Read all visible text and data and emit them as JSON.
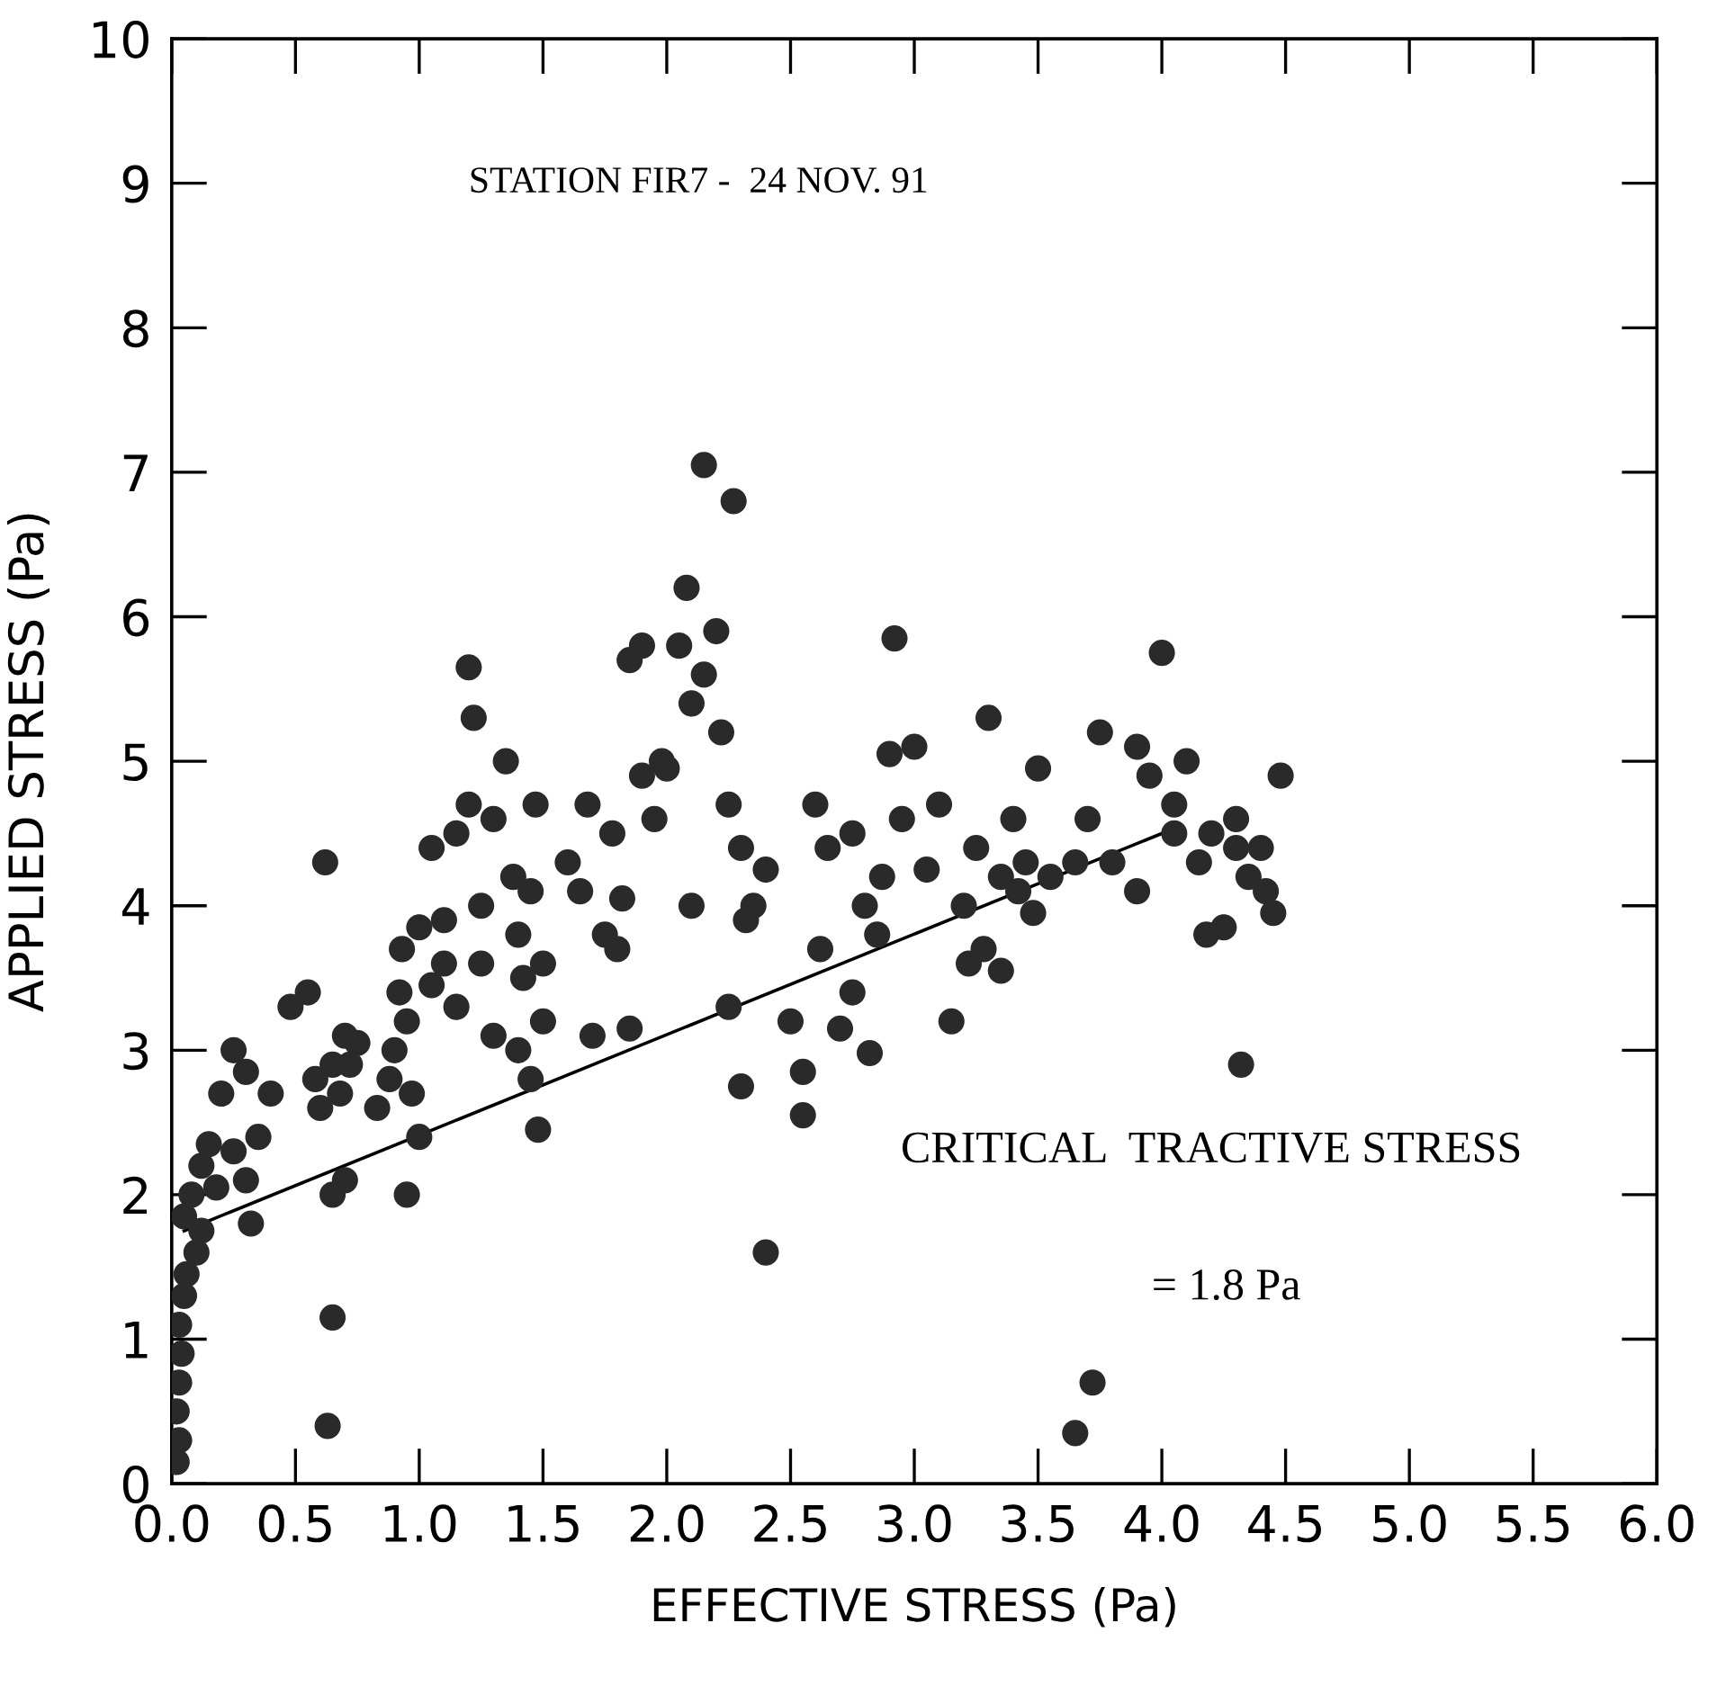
{
  "chart_data": {
    "type": "scatter",
    "xlabel": "EFFECTIVE STRESS (Pa)",
    "ylabel": "APPLIED STRESS (Pa)",
    "annotations": [
      "STATION FIR7 -  24 NOV. 91",
      "CRITICAL  TRACTIVE STRESS",
      "= 1.8 Pa"
    ],
    "xlim": [
      0,
      6
    ],
    "ylim": [
      0,
      10
    ],
    "xticks": [
      {
        "value": 0,
        "label": "0.0"
      },
      0.5,
      {
        "value": 1,
        "label": "1.0"
      },
      1.5,
      {
        "value": 2,
        "label": "2.0"
      },
      2.5,
      {
        "value": 3,
        "label": "3.0"
      },
      3.5,
      {
        "value": 4,
        "label": "4.0"
      },
      4.5,
      {
        "value": 5,
        "label": "5.0"
      },
      5.5,
      {
        "value": 6,
        "label": "6.0"
      }
    ],
    "yticks": [
      0,
      1,
      2,
      3,
      4,
      5,
      6,
      7,
      8,
      9,
      10
    ],
    "grid": false,
    "legend": false,
    "marker": "circle",
    "series": [
      {
        "color": "#2a2a2a",
        "x": [
          0.02,
          0.03,
          0.02,
          0.03,
          0.04,
          0.03,
          0.05,
          0.06,
          0.1,
          0.12,
          0.05,
          0.08,
          0.12,
          0.15,
          0.2,
          0.25,
          0.3,
          0.4,
          0.35,
          0.3,
          0.25,
          0.32,
          0.18,
          0.48,
          0.55,
          0.58,
          0.6,
          0.65,
          0.7,
          0.75,
          0.62,
          0.65,
          0.7,
          0.65,
          0.63,
          0.68,
          0.72,
          0.83,
          0.88,
          0.9,
          0.92,
          0.95,
          0.97,
          1.0,
          0.95,
          0.93,
          1.0,
          1.05,
          1.05,
          1.1,
          1.1,
          1.15,
          1.15,
          1.2,
          1.2,
          1.22,
          1.25,
          1.3,
          1.25,
          1.3,
          1.35,
          1.38,
          1.4,
          1.42,
          1.4,
          1.45,
          1.5,
          1.47,
          1.5,
          1.48,
          1.45,
          1.6,
          1.65,
          1.68,
          1.7,
          1.75,
          1.78,
          1.8,
          1.82,
          1.85,
          1.85,
          1.9,
          1.9,
          1.95,
          1.98,
          2.0,
          2.05,
          2.08,
          2.1,
          2.15,
          2.15,
          2.2,
          2.22,
          2.27,
          2.25,
          2.3,
          2.25,
          2.3,
          2.32,
          2.35,
          2.4,
          2.4,
          2.5,
          2.55,
          2.55,
          2.1,
          2.6,
          2.65,
          2.62,
          2.7,
          2.75,
          2.75,
          2.8,
          2.85,
          2.82,
          2.87,
          2.9,
          2.92,
          2.95,
          3.0,
          3.05,
          3.1,
          3.15,
          3.2,
          3.22,
          3.25,
          3.28,
          3.3,
          3.35,
          3.35,
          3.4,
          3.42,
          3.45,
          3.5,
          3.48,
          3.55,
          3.65,
          3.7,
          3.75,
          3.65,
          3.72,
          3.8,
          3.9,
          3.95,
          3.9,
          4.0,
          4.05,
          4.05,
          4.1,
          4.15,
          4.2,
          4.18,
          4.25,
          4.3,
          4.3,
          4.32,
          4.35,
          4.4,
          4.45,
          4.48,
          4.42
        ],
        "values": [
          0.15,
          0.3,
          0.5,
          0.7,
          0.9,
          1.1,
          1.3,
          1.45,
          1.6,
          1.75,
          1.85,
          2.0,
          2.2,
          2.35,
          2.7,
          3.0,
          2.85,
          2.7,
          2.4,
          2.1,
          2.3,
          1.8,
          2.05,
          3.3,
          3.4,
          2.8,
          2.6,
          2.9,
          3.1,
          3.05,
          4.3,
          2.0,
          2.1,
          1.15,
          0.4,
          2.7,
          2.9,
          2.6,
          2.8,
          3.0,
          3.4,
          3.2,
          2.7,
          2.4,
          2.0,
          3.7,
          3.85,
          3.45,
          4.4,
          3.9,
          3.6,
          3.3,
          4.5,
          4.7,
          5.65,
          5.3,
          4.0,
          4.6,
          3.6,
          3.1,
          5.0,
          4.2,
          3.8,
          3.5,
          3.0,
          2.8,
          3.2,
          4.7,
          3.6,
          2.45,
          4.1,
          4.3,
          4.1,
          4.7,
          3.1,
          3.8,
          4.5,
          3.7,
          4.05,
          3.15,
          5.7,
          5.8,
          4.9,
          4.6,
          5.0,
          4.95,
          5.8,
          6.2,
          5.4,
          5.6,
          7.05,
          5.9,
          5.2,
          6.8,
          4.7,
          4.4,
          3.3,
          2.75,
          3.9,
          4.0,
          4.25,
          1.6,
          3.2,
          2.85,
          2.55,
          4.0,
          4.7,
          4.4,
          3.7,
          3.15,
          3.4,
          4.5,
          4.0,
          3.8,
          2.98,
          4.2,
          5.05,
          5.85,
          4.6,
          5.1,
          4.25,
          4.7,
          3.2,
          4.0,
          3.6,
          4.4,
          3.7,
          5.3,
          3.55,
          4.2,
          4.6,
          4.1,
          4.3,
          4.95,
          3.95,
          4.2,
          4.3,
          4.6,
          5.2,
          0.35,
          0.7,
          4.3,
          5.1,
          4.9,
          4.1,
          5.75,
          4.7,
          4.5,
          5.0,
          4.3,
          4.5,
          3.8,
          3.85,
          4.6,
          4.4,
          2.9,
          4.2,
          4.4,
          3.95,
          4.9,
          4.1
        ]
      },
      {
        "type": "line",
        "color": "#000000",
        "marker": "none",
        "line_style": "solid",
        "x": [
          0.05,
          4.0
        ],
        "values": [
          1.75,
          4.5
        ]
      }
    ]
  }
}
